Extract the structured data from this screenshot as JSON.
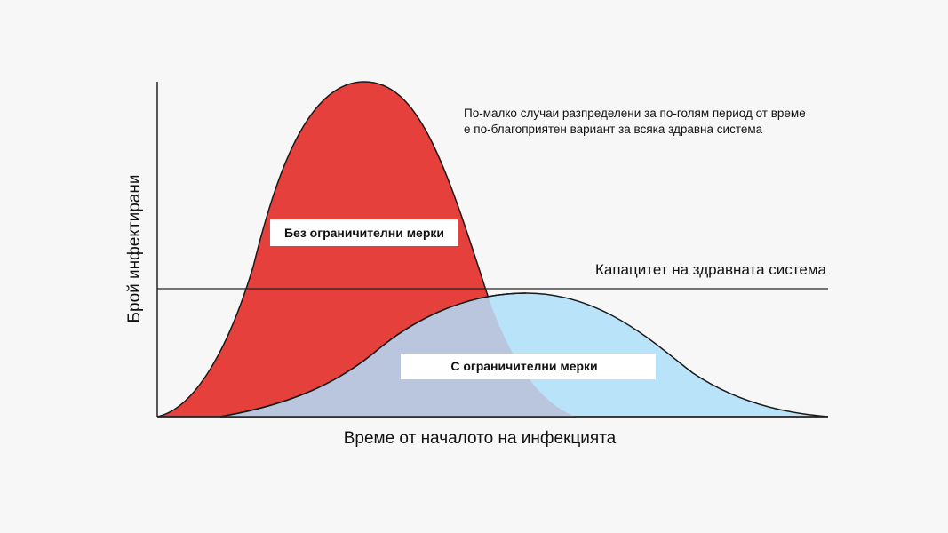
{
  "diagram": {
    "y_axis_label": "Брой инфектирани",
    "x_axis_label": "Време от началото на инфекцията",
    "capacity_label": "Капацитет на здравната система",
    "note_line1": "По-малко случаи разпределени за по-голям период от време",
    "note_line2": "е по-благоприятен вариант за всяка здравна система",
    "curve_no_measures_label": "Без ограничителни мерки",
    "curve_with_measures_label": "С ограничителни мерки",
    "colors": {
      "no_measures": "#e5403b",
      "with_measures": "#b9e3f8",
      "overlap": "#b9c6de",
      "axis": "#222222",
      "background": "#f7f7f7"
    }
  }
}
